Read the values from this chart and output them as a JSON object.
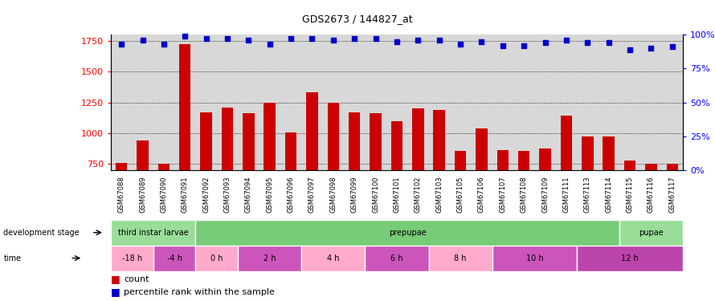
{
  "title": "GDS2673 / 144827_at",
  "samples": [
    "GSM67088",
    "GSM67089",
    "GSM67090",
    "GSM67091",
    "GSM67092",
    "GSM67093",
    "GSM67094",
    "GSM67095",
    "GSM67096",
    "GSM67097",
    "GSM67098",
    "GSM67099",
    "GSM67100",
    "GSM67101",
    "GSM67102",
    "GSM67103",
    "GSM67105",
    "GSM67106",
    "GSM67107",
    "GSM67108",
    "GSM67109",
    "GSM67111",
    "GSM67113",
    "GSM67114",
    "GSM67115",
    "GSM67116",
    "GSM67117"
  ],
  "counts": [
    755,
    940,
    750,
    1720,
    1170,
    1210,
    1165,
    1250,
    1005,
    1330,
    1250,
    1170,
    1165,
    1100,
    1200,
    1185,
    855,
    1040,
    860,
    855,
    875,
    1140,
    975,
    970,
    775,
    750,
    750
  ],
  "percentile": [
    93,
    96,
    93,
    99,
    97,
    97,
    96,
    93,
    97,
    97,
    96,
    97,
    97,
    95,
    96,
    96,
    93,
    95,
    92,
    92,
    94,
    96,
    94,
    94,
    89,
    90,
    91
  ],
  "ylim_left": [
    700,
    1800
  ],
  "ylim_right": [
    0,
    100
  ],
  "yticks_left": [
    750,
    1000,
    1250,
    1500,
    1750
  ],
  "yticks_right": [
    0,
    25,
    50,
    75,
    100
  ],
  "bar_color": "#cc0000",
  "dot_color": "#0000cc",
  "chart_bg": "#d8d8d8",
  "dev_stage_spans": [
    {
      "name": "third instar larvae",
      "start": 0,
      "end": 4,
      "color": "#99dd99"
    },
    {
      "name": "prepupae",
      "start": 4,
      "end": 24,
      "color": "#77cc77"
    },
    {
      "name": "pupae",
      "start": 24,
      "end": 27,
      "color": "#99dd99"
    }
  ],
  "time_spans": [
    {
      "name": "-18 h",
      "start": 0,
      "end": 2,
      "color": "#ffaacc"
    },
    {
      "name": "-4 h",
      "start": 2,
      "end": 4,
      "color": "#cc55bb"
    },
    {
      "name": "0 h",
      "start": 4,
      "end": 6,
      "color": "#ffaacc"
    },
    {
      "name": "2 h",
      "start": 6,
      "end": 9,
      "color": "#cc55bb"
    },
    {
      "name": "4 h",
      "start": 9,
      "end": 12,
      "color": "#ffaacc"
    },
    {
      "name": "6 h",
      "start": 12,
      "end": 15,
      "color": "#cc55bb"
    },
    {
      "name": "8 h",
      "start": 15,
      "end": 18,
      "color": "#ffaacc"
    },
    {
      "name": "10 h",
      "start": 18,
      "end": 22,
      "color": "#cc55bb"
    },
    {
      "name": "12 h",
      "start": 22,
      "end": 27,
      "color": "#bb44aa"
    }
  ]
}
